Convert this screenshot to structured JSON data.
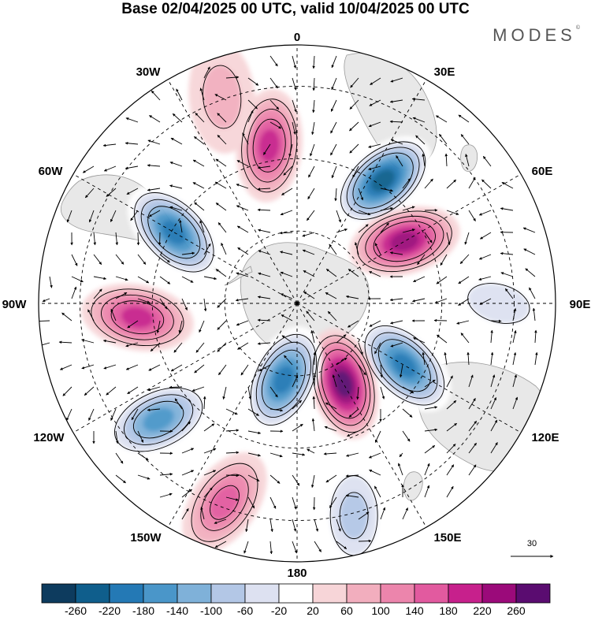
{
  "title": "Base 02/04/2025 00 UTC, valid 10/04/2025 00 UTC",
  "brand": "MODES",
  "brand_mark": "©",
  "longitude_labels": {
    "0": "0",
    "30E": "30E",
    "60E": "60E",
    "90E": "90E",
    "120E": "120E",
    "150E": "150E",
    "180": "180",
    "150W": "150W",
    "120W": "120W",
    "90W": "90W",
    "60W": "60W",
    "30W": "30W"
  },
  "reference_vector": {
    "label": "30"
  },
  "colorbar": {
    "ticks": [
      "-260",
      "-220",
      "-180",
      "-140",
      "-100",
      "-60",
      "-20",
      "20",
      "60",
      "100",
      "140",
      "180",
      "220",
      "260"
    ],
    "colors": [
      "#0d3b5e",
      "#0f5e8c",
      "#2479b5",
      "#4a96c9",
      "#7fb1d9",
      "#b3c7e6",
      "#dde1f1",
      "#ffffff",
      "#f7d5d8",
      "#f2aebe",
      "#ec85ac",
      "#e25a9f",
      "#c7208c",
      "#9b0a7a",
      "#5a0c70"
    ]
  },
  "colors": {
    "land": "#e8e8e8",
    "coast": "#9a9a9a",
    "contour": "#000000"
  },
  "map_data": {
    "projection": "south-polar-stereographic",
    "field": "streamfunction anomaly with wind vectors",
    "anomalies": [
      {
        "lon": -10,
        "colat": 0.62,
        "value": 170
      },
      {
        "lon": 35,
        "colat": 0.58,
        "value": -250
      },
      {
        "lon": 60,
        "colat": 0.48,
        "value": 230
      },
      {
        "lon": -60,
        "colat": 0.55,
        "value": -200
      },
      {
        "lon": -95,
        "colat": 0.62,
        "value": 190
      },
      {
        "lon": 120,
        "colat": 0.48,
        "value": -210
      },
      {
        "lon": 150,
        "colat": 0.36,
        "value": 260
      },
      {
        "lon": -170,
        "colat": 0.3,
        "value": -230
      },
      {
        "lon": -130,
        "colat": 0.7,
        "value": -190
      },
      {
        "lon": -160,
        "colat": 0.82,
        "value": 130
      },
      {
        "lon": 165,
        "colat": 0.85,
        "value": -110
      },
      {
        "lon": -20,
        "colat": 0.85,
        "value": 60
      },
      {
        "lon": 90,
        "colat": 0.78,
        "value": -60
      }
    ]
  }
}
